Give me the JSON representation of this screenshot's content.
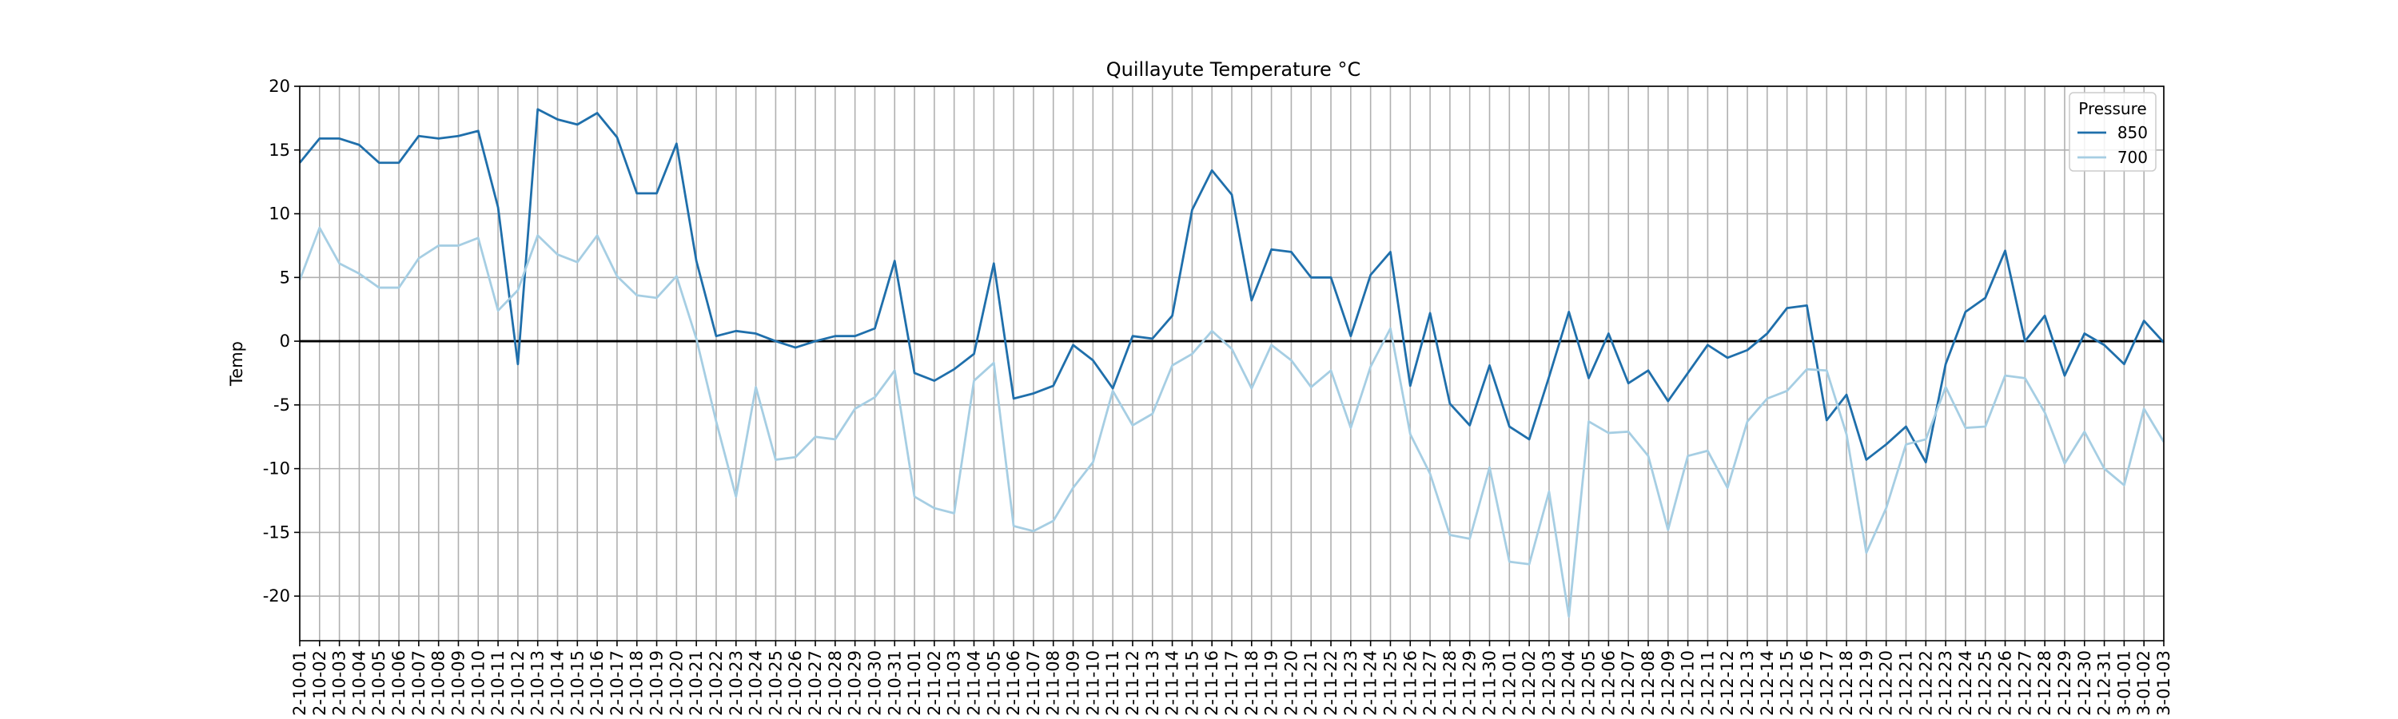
{
  "chart_data": {
    "type": "line",
    "title": "Quillayute Temperature °C",
    "xlabel": "",
    "ylabel": "Temp",
    "ylim": [
      -23.5,
      20
    ],
    "yticks": [
      20,
      15,
      10,
      5,
      0,
      -5,
      -10,
      -15,
      -20
    ],
    "grid": true,
    "legend": {
      "title": "Pressure",
      "position": "top-right"
    },
    "x": [
      "2-10-01",
      "2-10-02",
      "2-10-03",
      "2-10-04",
      "2-10-05",
      "2-10-06",
      "2-10-07",
      "2-10-08",
      "2-10-09",
      "2-10-10",
      "2-10-11",
      "2-10-12",
      "2-10-13",
      "2-10-14",
      "2-10-15",
      "2-10-16",
      "2-10-17",
      "2-10-18",
      "2-10-19",
      "2-10-20",
      "2-10-21",
      "2-10-22",
      "2-10-23",
      "2-10-24",
      "2-10-25",
      "2-10-26",
      "2-10-27",
      "2-10-28",
      "2-10-29",
      "2-10-30",
      "2-10-31",
      "2-11-01",
      "2-11-02",
      "2-11-03",
      "2-11-04",
      "2-11-05",
      "2-11-06",
      "2-11-07",
      "2-11-08",
      "2-11-09",
      "2-11-10",
      "2-11-11",
      "2-11-12",
      "2-11-13",
      "2-11-14",
      "2-11-15",
      "2-11-16",
      "2-11-17",
      "2-11-18",
      "2-11-19",
      "2-11-20",
      "2-11-21",
      "2-11-22",
      "2-11-23",
      "2-11-24",
      "2-11-25",
      "2-11-26",
      "2-11-27",
      "2-11-28",
      "2-11-29",
      "2-11-30",
      "2-12-01",
      "2-12-02",
      "2-12-03",
      "2-12-04",
      "2-12-05",
      "2-12-06",
      "2-12-07",
      "2-12-08",
      "2-12-09",
      "2-12-10",
      "2-12-11",
      "2-12-12",
      "2-12-13",
      "2-12-14",
      "2-12-15",
      "2-12-16",
      "2-12-17",
      "2-12-18",
      "2-12-19",
      "2-12-20",
      "2-12-21",
      "2-12-22",
      "2-12-23",
      "2-12-24",
      "2-12-25",
      "2-12-26",
      "2-12-27",
      "2-12-28",
      "2-12-29",
      "2-12-30",
      "2-12-31",
      "3-01-01",
      "3-01-02",
      "3-01-03"
    ],
    "series": [
      {
        "name": "850",
        "color": "#1f6fab",
        "values": [
          14.0,
          15.9,
          15.9,
          15.4,
          14.0,
          14.0,
          16.1,
          15.9,
          16.1,
          16.5,
          10.5,
          -1.8,
          18.2,
          17.4,
          17.0,
          17.9,
          16.0,
          11.6,
          11.6,
          15.5,
          6.3,
          0.4,
          0.8,
          0.6,
          0.0,
          -0.5,
          0.0,
          0.4,
          0.4,
          1.0,
          6.3,
          -2.5,
          -3.1,
          -2.2,
          -1.0,
          6.1,
          -4.5,
          -4.1,
          -3.5,
          -0.3,
          -1.5,
          -3.7,
          0.4,
          0.2,
          2.0,
          10.3,
          13.4,
          11.5,
          3.2,
          7.2,
          7.0,
          5.0,
          5.0,
          0.4,
          5.2,
          7.0,
          -3.5,
          2.2,
          -4.9,
          -6.6,
          -1.9,
          -6.7,
          -7.7,
          -2.8,
          2.3,
          -2.9,
          0.6,
          -3.3,
          -2.3,
          -4.7,
          -2.5,
          -0.3,
          -1.3,
          -0.7,
          0.6,
          2.6,
          2.8,
          -6.2,
          -4.2,
          -9.3,
          -8.1,
          -6.7,
          -9.5,
          -1.8,
          2.3,
          3.4,
          7.1,
          0.0,
          2.0,
          -2.7,
          0.6,
          -0.3,
          -1.8,
          1.6,
          -0.1
        ]
      },
      {
        "name": "700",
        "color": "#a6cee3",
        "values": [
          4.8,
          8.9,
          6.1,
          5.3,
          4.2,
          4.2,
          6.5,
          7.5,
          7.5,
          8.1,
          2.4,
          4.0,
          8.3,
          6.8,
          6.2,
          8.3,
          5.1,
          3.6,
          3.4,
          5.1,
          0.2,
          -6.3,
          -12.2,
          -3.6,
          -9.3,
          -9.1,
          -7.5,
          -7.7,
          -5.3,
          -4.4,
          -2.3,
          -12.2,
          -13.1,
          -13.5,
          -3.1,
          -1.7,
          -14.5,
          -14.9,
          -14.1,
          -11.5,
          -9.5,
          -3.9,
          -6.6,
          -5.7,
          -1.9,
          -1.0,
          0.8,
          -0.6,
          -3.7,
          -0.3,
          -1.5,
          -3.6,
          -2.3,
          -6.8,
          -2.0,
          1.0,
          -7.3,
          -10.4,
          -15.2,
          -15.5,
          -9.9,
          -17.3,
          -17.5,
          -11.8,
          -21.6,
          -6.3,
          -7.2,
          -7.1,
          -9.0,
          -14.8,
          -9.0,
          -8.6,
          -11.5,
          -6.3,
          -4.5,
          -3.9,
          -2.2,
          -2.3,
          -7.3,
          -16.6,
          -13.1,
          -8.1,
          -7.7,
          -3.6,
          -6.8,
          -6.7,
          -2.7,
          -2.9,
          -5.6,
          -9.6,
          -7.1,
          -10.0,
          -11.3,
          -5.3,
          -7.9
        ]
      }
    ],
    "reference_line": {
      "y": 0,
      "color": "#000000"
    }
  }
}
